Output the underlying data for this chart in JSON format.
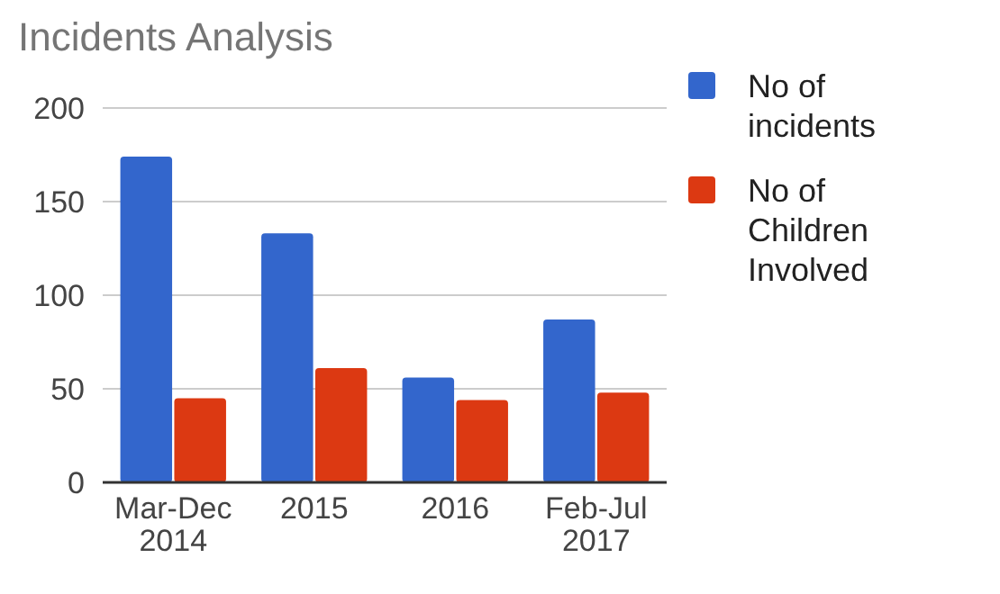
{
  "chart_data": {
    "type": "bar",
    "title": "Incidents Analysis",
    "categories": [
      "Mar-Dec 2014",
      "2015",
      "2016",
      "Feb-Jul 2017"
    ],
    "series": [
      {
        "name": "No of incidents",
        "color": "#3366cc",
        "values": [
          174,
          133,
          56,
          87
        ]
      },
      {
        "name": "No of Children Involved",
        "color": "#dc3912",
        "values": [
          45,
          61,
          44,
          48
        ]
      }
    ],
    "ylim": [
      0,
      200
    ],
    "yticks": [
      0,
      50,
      100,
      150,
      200
    ],
    "grid": true,
    "legend": "top right"
  }
}
